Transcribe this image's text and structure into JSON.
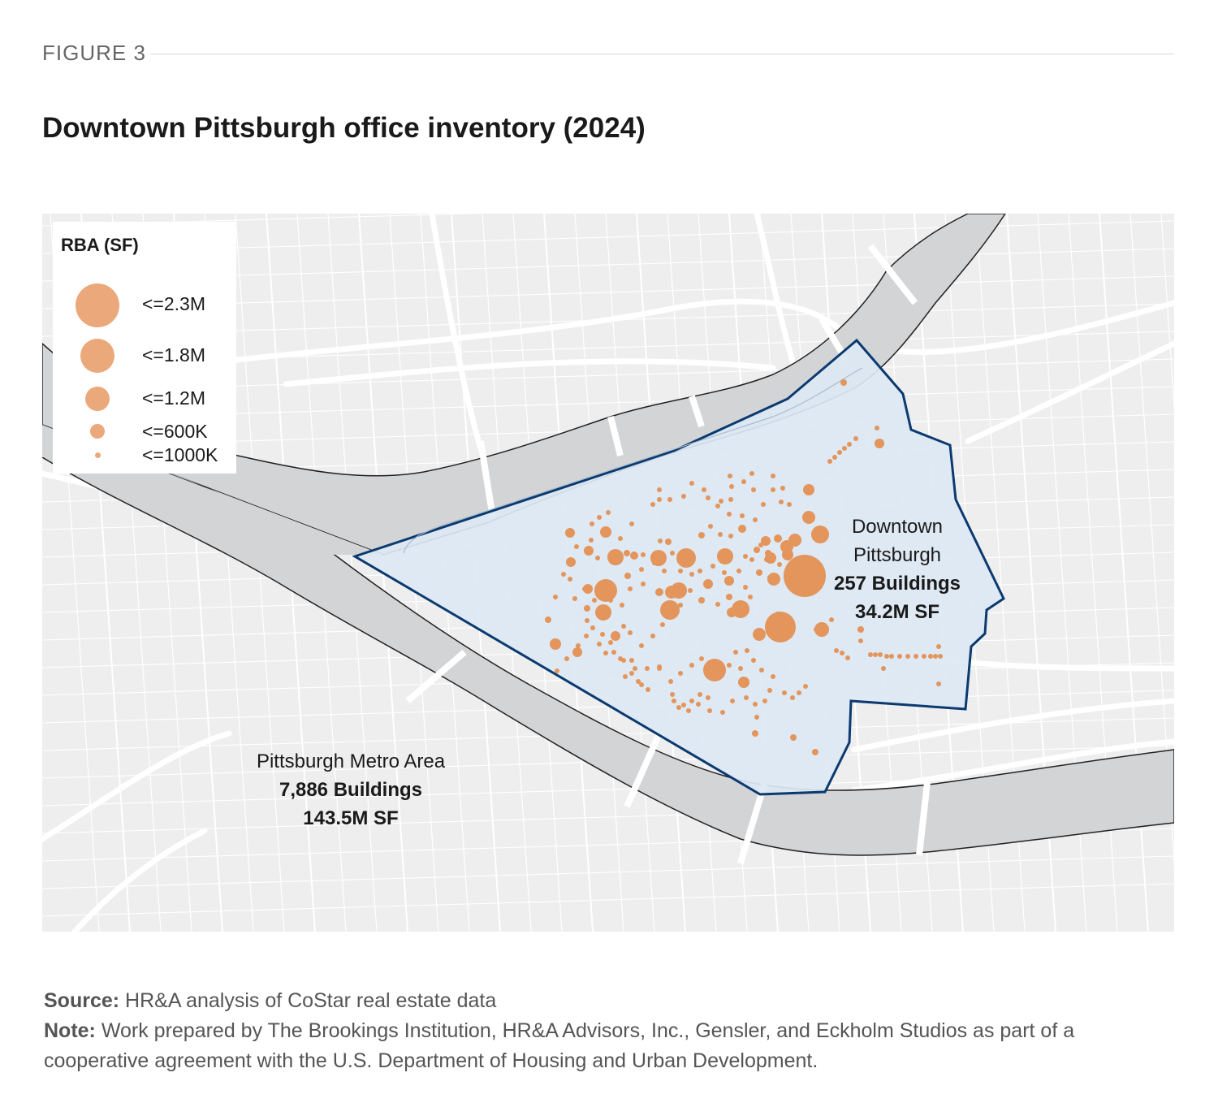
{
  "header": {
    "figure_label": "FIGURE 3",
    "title": "Downtown Pittsburgh office inventory (2024)"
  },
  "legend": {
    "title": "RBA (SF)",
    "items": [
      {
        "label": "<=2.3M"
      },
      {
        "label": "<=1.8M"
      },
      {
        "label": "<=1.2M"
      },
      {
        "label": "<=600K"
      },
      {
        "label": "<=1000K"
      }
    ]
  },
  "annotations": {
    "downtown": {
      "line1": "Downtown",
      "line2": "Pittsburgh",
      "buildings": "257 Buildings",
      "area": "34.2M SF"
    },
    "metro": {
      "line1": "Pittsburgh Metro Area",
      "buildings": "7,886 Buildings",
      "area": "143.5M SF"
    }
  },
  "footer": {
    "source_label": "Source:",
    "source_text": "HR&A analysis of CoStar real estate data",
    "note_label": "Note:",
    "note_text": "Work prepared by The Brookings Institution, HR&A Advisors, Inc., Gensler, and Eckholm Studios as part of a cooperative agreement with the U.S. Department of Housing and Urban Development."
  },
  "colors": {
    "marker": "#e3955c",
    "legend_marker": "#eaa87b",
    "boundary": "#0b3a70",
    "boundary_fill": "#dce8f3",
    "river": "#d3d4d6",
    "land": "#eeeeee",
    "street": "#ffffff"
  }
}
